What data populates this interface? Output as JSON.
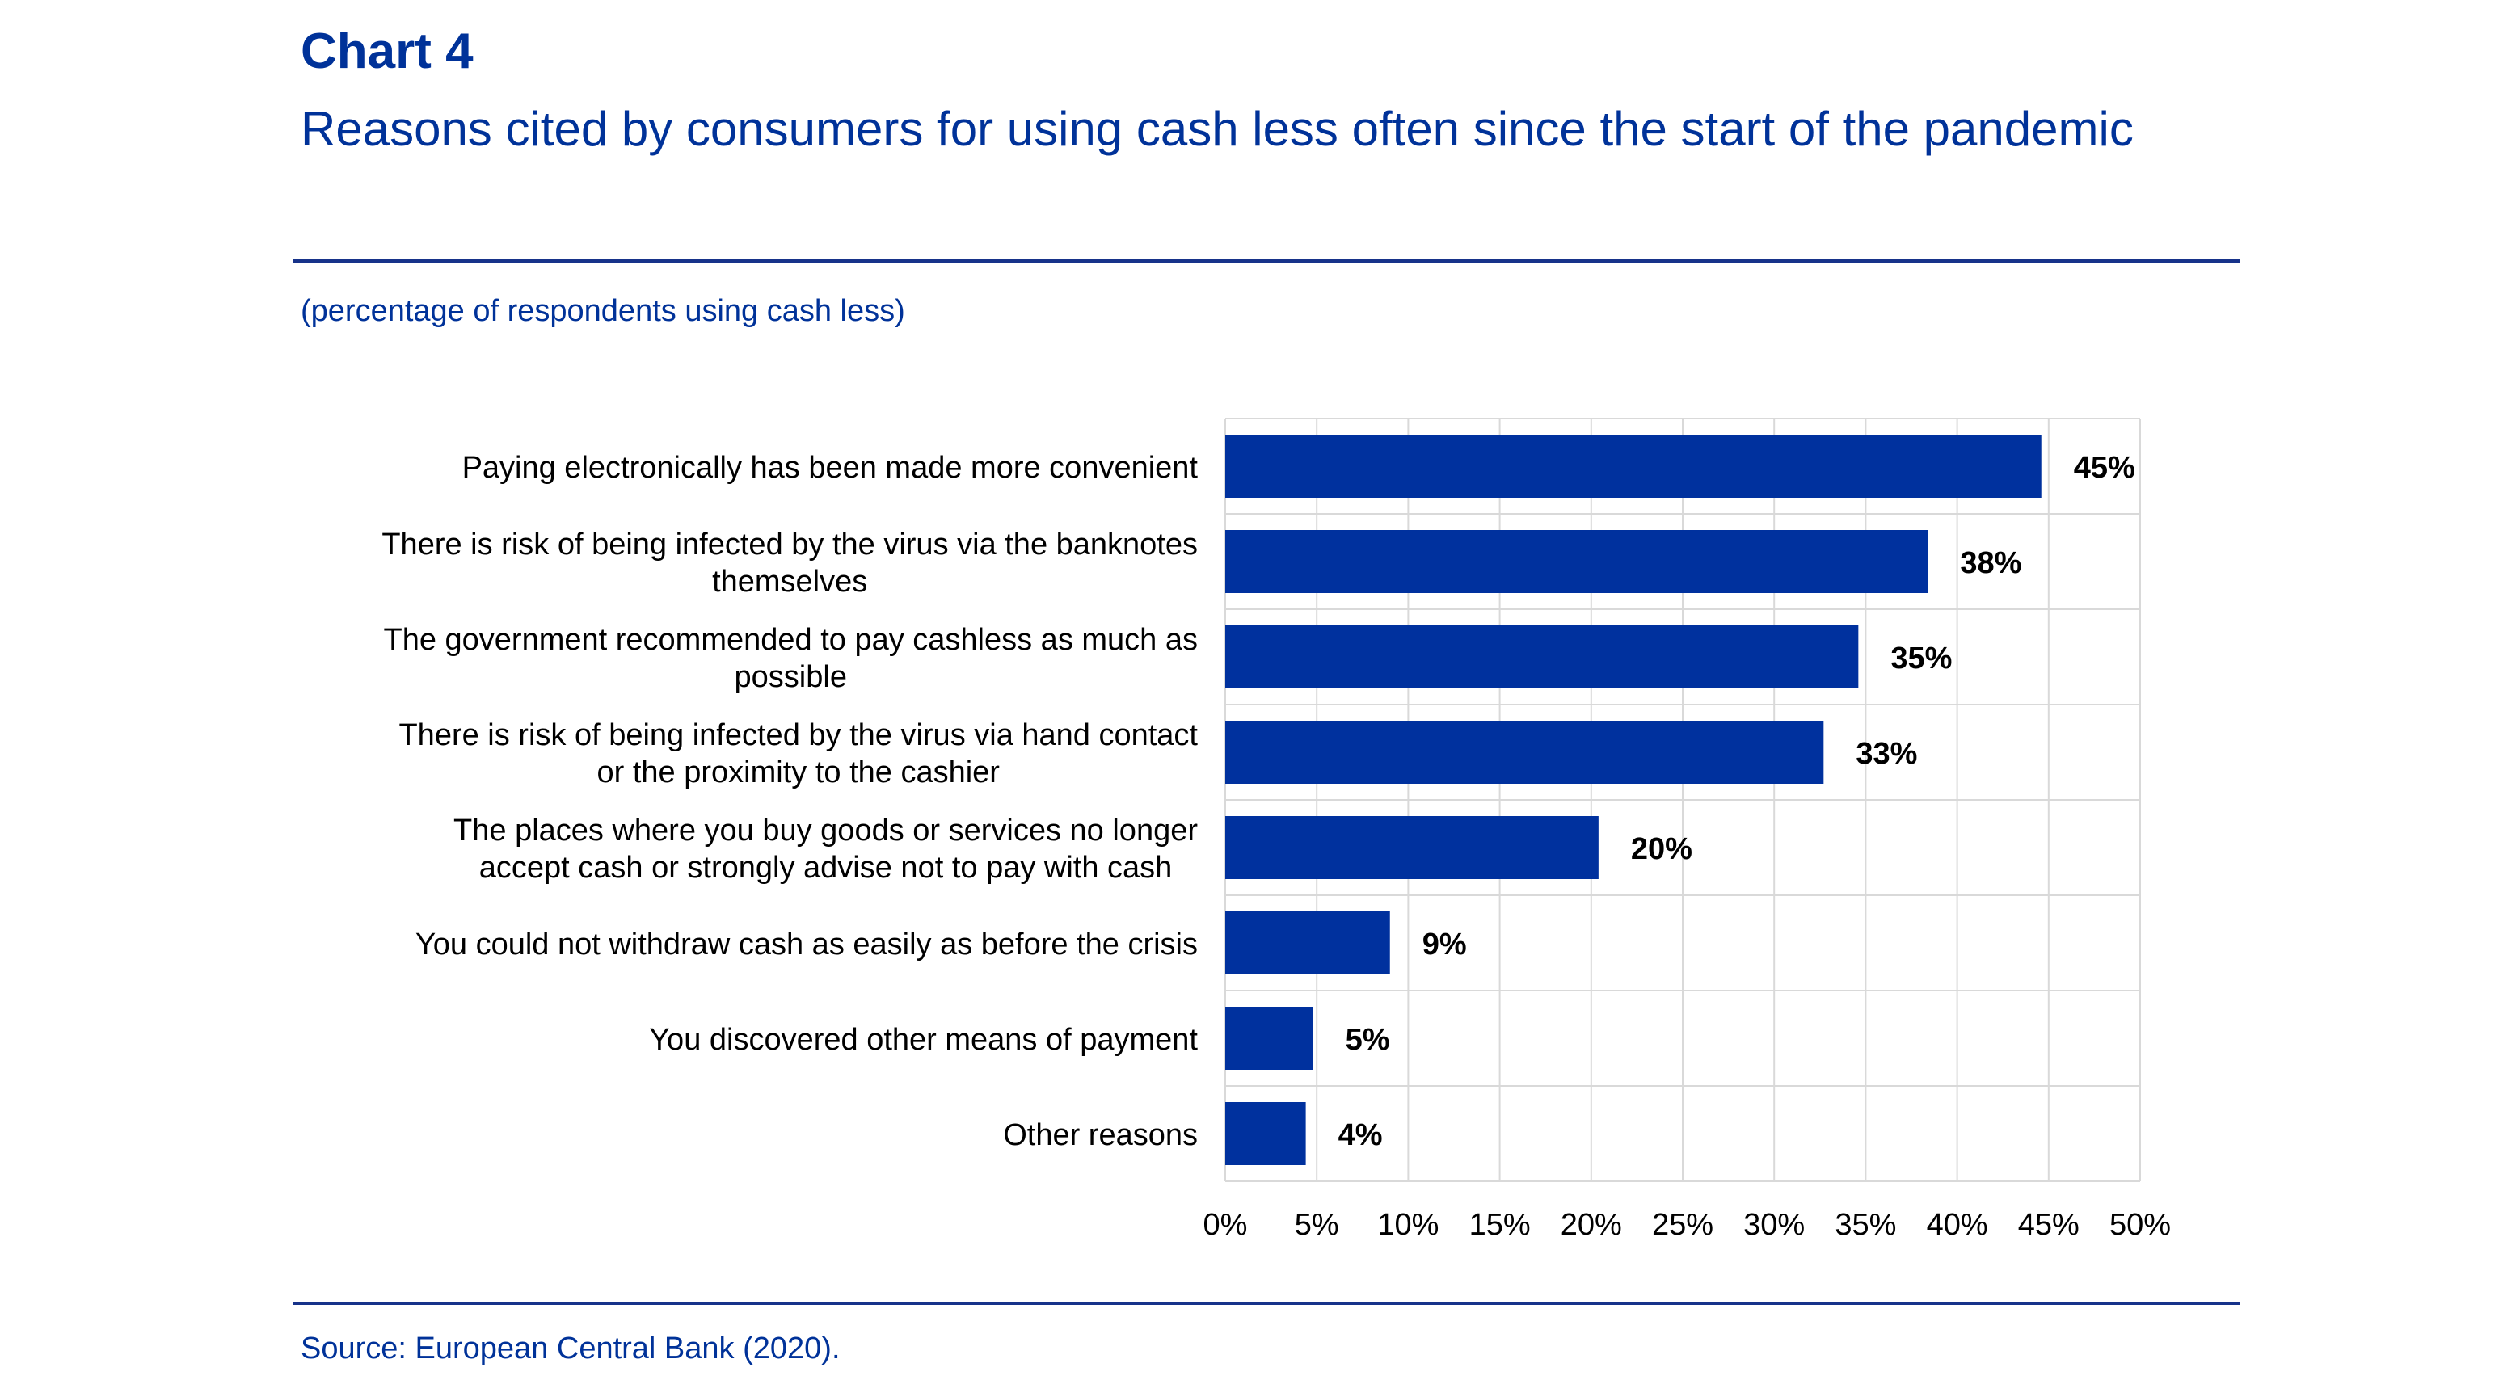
{
  "header": {
    "chart_label": "Chart 4",
    "title": "Reasons cited by consumers for using cash less often since the start of the pandemic",
    "subtitle": "(percentage of respondents using cash less)"
  },
  "footer": {
    "source": "Source: European Central Bank (2020)."
  },
  "colors": {
    "bar": "#00319E",
    "title": "#003299",
    "grid": "#d9d9d9",
    "rule": "#17338a",
    "text": "#000000"
  },
  "chart_data": {
    "type": "bar",
    "orientation": "horizontal",
    "categories": [
      [
        "Paying electronically has been made more convenient"
      ],
      [
        "There is risk of being infected by the virus via the banknotes",
        "themselves"
      ],
      [
        "The government recommended to pay cashless as much as",
        "possible"
      ],
      [
        "There is risk of being infected by the virus via hand contact",
        "or the proximity to the cashier"
      ],
      [
        "The places where you buy goods or services no longer",
        "accept cash or strongly advise not to pay with cash"
      ],
      [
        "You could not withdraw cash as easily as before the crisis"
      ],
      [
        "You discovered other means of payment"
      ],
      [
        "Other reasons"
      ]
    ],
    "values": [
      44.6,
      38.4,
      34.6,
      32.7,
      20.4,
      9.0,
      4.8,
      4.4
    ],
    "data_labels": [
      "45%",
      "38%",
      "35%",
      "33%",
      "20%",
      "9%",
      "5%",
      "4%"
    ],
    "xlim": [
      0,
      50
    ],
    "x_ticks": [
      "0%",
      "5%",
      "10%",
      "15%",
      "20%",
      "25%",
      "30%",
      "35%",
      "40%",
      "45%",
      "50%"
    ],
    "grid": true
  }
}
